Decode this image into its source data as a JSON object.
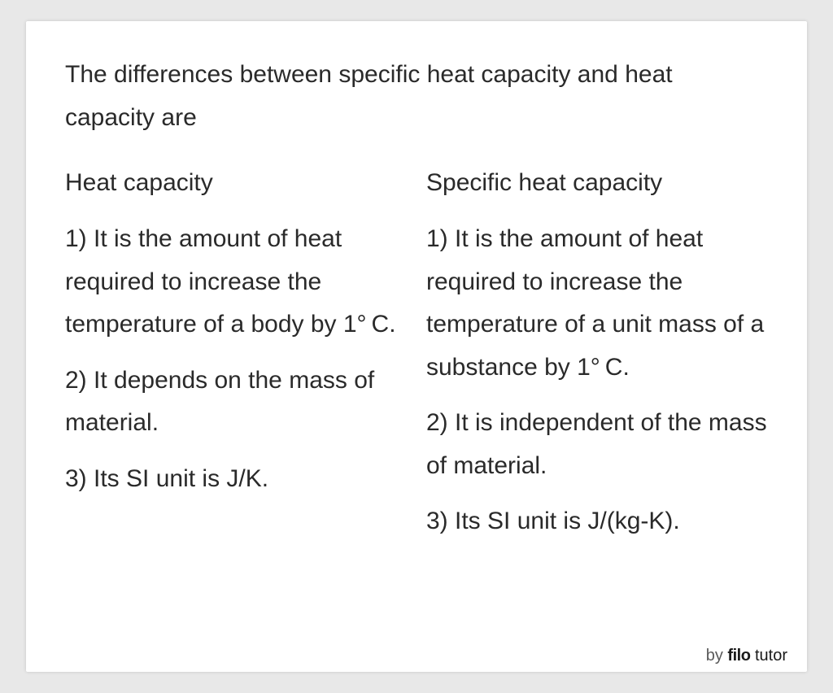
{
  "background_color": "#e8e8e8",
  "card_background": "#ffffff",
  "text_color": "#2a2a2a",
  "font_family": "Verdana, Geneva, sans-serif",
  "intro": "The differences between specific heat capacity and heat capacity are",
  "columns": {
    "left": {
      "header": "Heat capacity",
      "rows": [
        "1) It is the amount of heat required to increase the temperature of a body by 1° C.",
        "2) It depends on the mass of material.",
        "3) Its SI unit is J/K."
      ]
    },
    "right": {
      "header": "Specific heat capacity",
      "rows": [
        "1) It is the amount of heat required to increase the temperature of a unit mass of a substance by 1° C.",
        "2) It is independent of the mass of material.",
        "3) Its SI unit is J/(kg-K)."
      ]
    }
  },
  "watermark": {
    "prefix": "by ",
    "brand_bold": "filo",
    "brand_rest": " tutor"
  }
}
